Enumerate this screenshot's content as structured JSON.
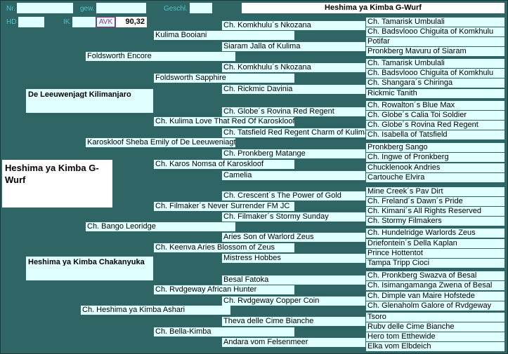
{
  "header": {
    "nr_label": "Nr.",
    "gew_label": "gew.",
    "geschl_label": "Geschl.",
    "hd_label": "HD",
    "ik_label": "IK",
    "avk_label": "AVK",
    "avk_value": "90,32",
    "title": "Heshima ya Kimba G-Wurf"
  },
  "subject": "Heshima ya Kimba G-Wurf",
  "parents": {
    "sire": "De Leeuwenjagt Kilimanjaro",
    "dam": "Heshima ya Kimba Chakanyuka"
  },
  "grandparents": [
    "Foldsworth Encore",
    "Karoskloof Sheba Emily of De Leeuweniagt",
    "Ch. Bango Leoridge",
    "Ch. Heshima ya Kimba Ashari"
  ],
  "greatgrandparents": [
    "Kulima Booiani",
    "Foldsworth Sapphire",
    "Ch. Kulima Love That Red Of Karoskloof",
    "Ch. Karos Nomsa of Karoskloof",
    "Ch. Filmaker´s Never Surrender FM JC",
    "Ch. Keenva Aries Blossom of Zeus",
    "Ch. Rvdgeway African Hunter",
    "Ch. Bella-Kimba"
  ],
  "gen4": [
    "Ch. Komkhulu´s Nkozana",
    "Siaram Jalla of Kulima",
    "Ch. Komkhulu´s Nkozana",
    "Ch. Rickmic Davinia",
    "Ch. Globe´s Rovina Red Regent",
    "Ch. Tatsfield Red Regent Charm of Kulima",
    "Ch. Pronkberg Matange",
    "Camelia",
    "Ch. Crescent´s The Power of Gold",
    "Ch. Filmaker´s Stormy Sunday",
    "Aries Son of Warlord Zeus",
    "Mistress Hobbes",
    "Besal Fatoka",
    "Ch. Rvdgeway Copper Coin",
    "Theva delle Cime Bianche",
    "Andara vom Felsenmeer"
  ],
  "gen5": [
    "Ch. Tamarisk Umbulali",
    "Ch. Badsvlooo Chiguita of Komkhulu",
    "Potifar",
    "Pronkberg Mavuru of Siaram",
    "Ch. Tamarisk Umbulali",
    "Ch. Badsvlooo Chiguita of Komkhulu",
    "Ch. Shangara´s Chiringa",
    "Rickmic Tanith",
    "Ch. Rowalton´s Blue Max",
    "Ch. Globe´s Calia Toi Soldier",
    "Ch. Globe´s Rovina Red Regent",
    "Ch. Isabella of Tatsfield",
    "Pronkberg Sango",
    "Ch. Ingwe of Pronkberg",
    "Chucklenook Andries",
    "Cartouche Elvira",
    "Mine Creek´s Pav Dirt",
    "Ch. Freland´s Dawn´s Pride",
    "Ch. Kimani´s All Rights Reserved",
    "Ch. Stormy Filmakers",
    "Ch. Hundelridge Warlords Zeus",
    "Driefontein´s Della Kaplan",
    "Prince Hottentot",
    "Tampa Tripp Cioci",
    "Ch. Pronkberg Swazva of Besal",
    "Ch. Isimangamanga Zwena of Besal",
    "Ch. Dimple van Maire Hofstede",
    "Ch. Glenaholm Galore of Rvdgeway",
    "Tsoro",
    "Rubv delle Cime Bianche",
    "Hero tom Etthewide",
    "Elka vom Elbdeich"
  ]
}
